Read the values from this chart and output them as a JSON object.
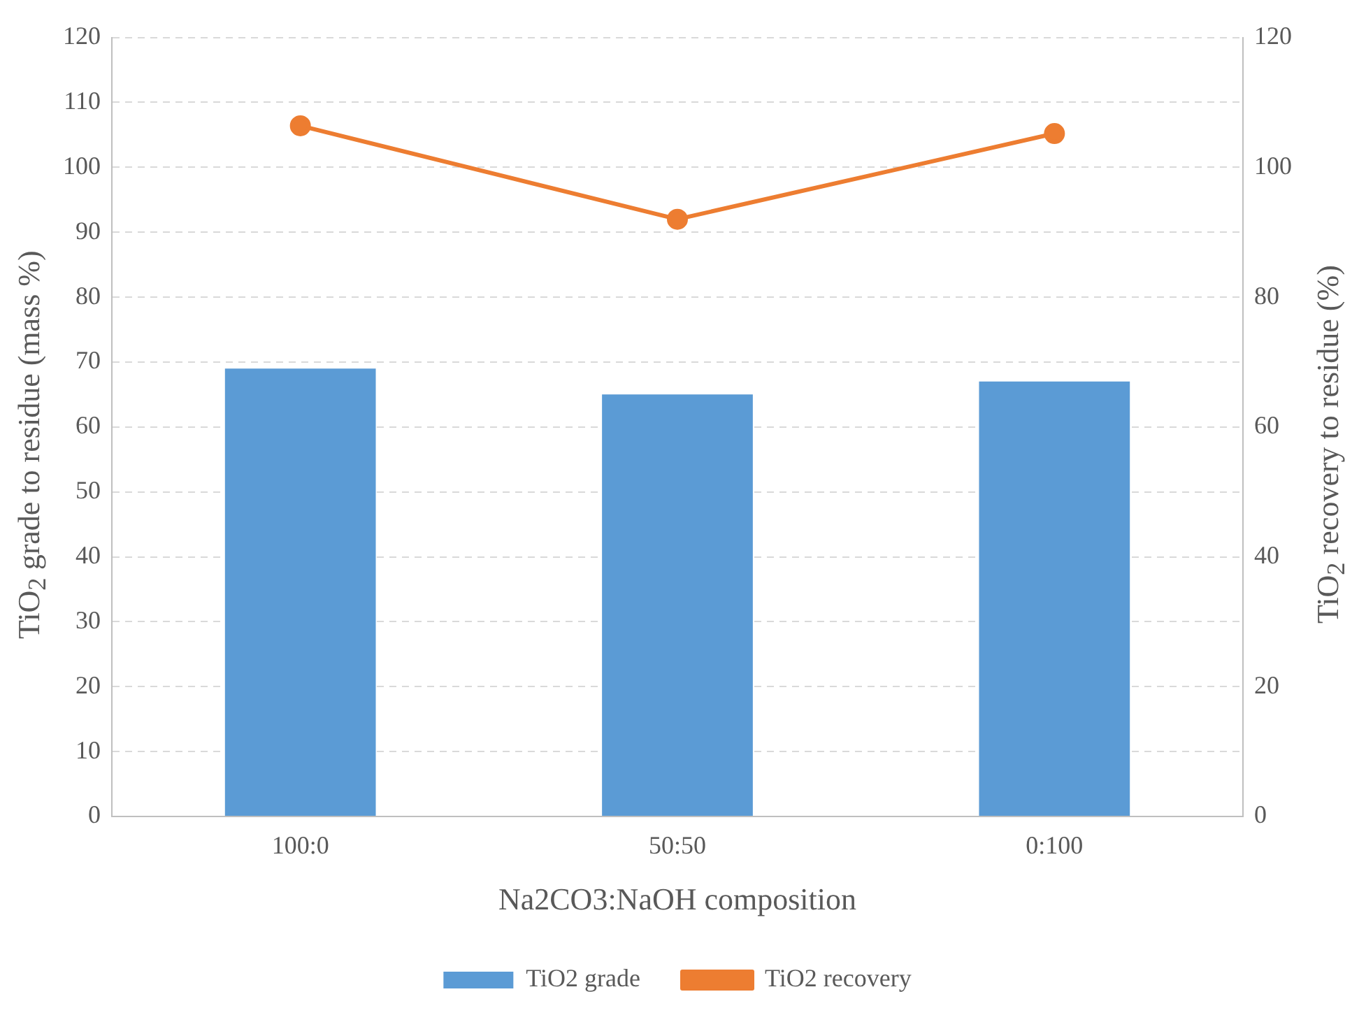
{
  "chart_data": {
    "type": "bar",
    "xlabel": "Na2CO3:NaOH composition",
    "ylabel": "TiO$_{2}$ grade to residue (mass %)",
    "y2label": "TiO$_{2}$ recovery to residue (%)",
    "categories": [
      "100:0",
      "50:50",
      "0:100"
    ],
    "series": [
      {
        "name": "TiO2 grade",
        "color": "#5b9bd5",
        "values": [
          69,
          65,
          67
        ]
      },
      {
        "name": "TiO2 recovery",
        "type": "line",
        "axis": "y2",
        "color": "#ed7d31",
        "values": [
          106.4,
          92,
          105.2
        ],
        "marker": "circle"
      }
    ],
    "ylim": [
      0,
      120
    ],
    "yticks": [
      0,
      10,
      20,
      30,
      40,
      50,
      60,
      70,
      80,
      90,
      100,
      110,
      120
    ],
    "y2lim": [
      0,
      120
    ],
    "y2ticks": [
      0,
      20,
      40,
      60,
      80,
      100,
      120
    ],
    "grid": "y",
    "legend": "bottom"
  }
}
